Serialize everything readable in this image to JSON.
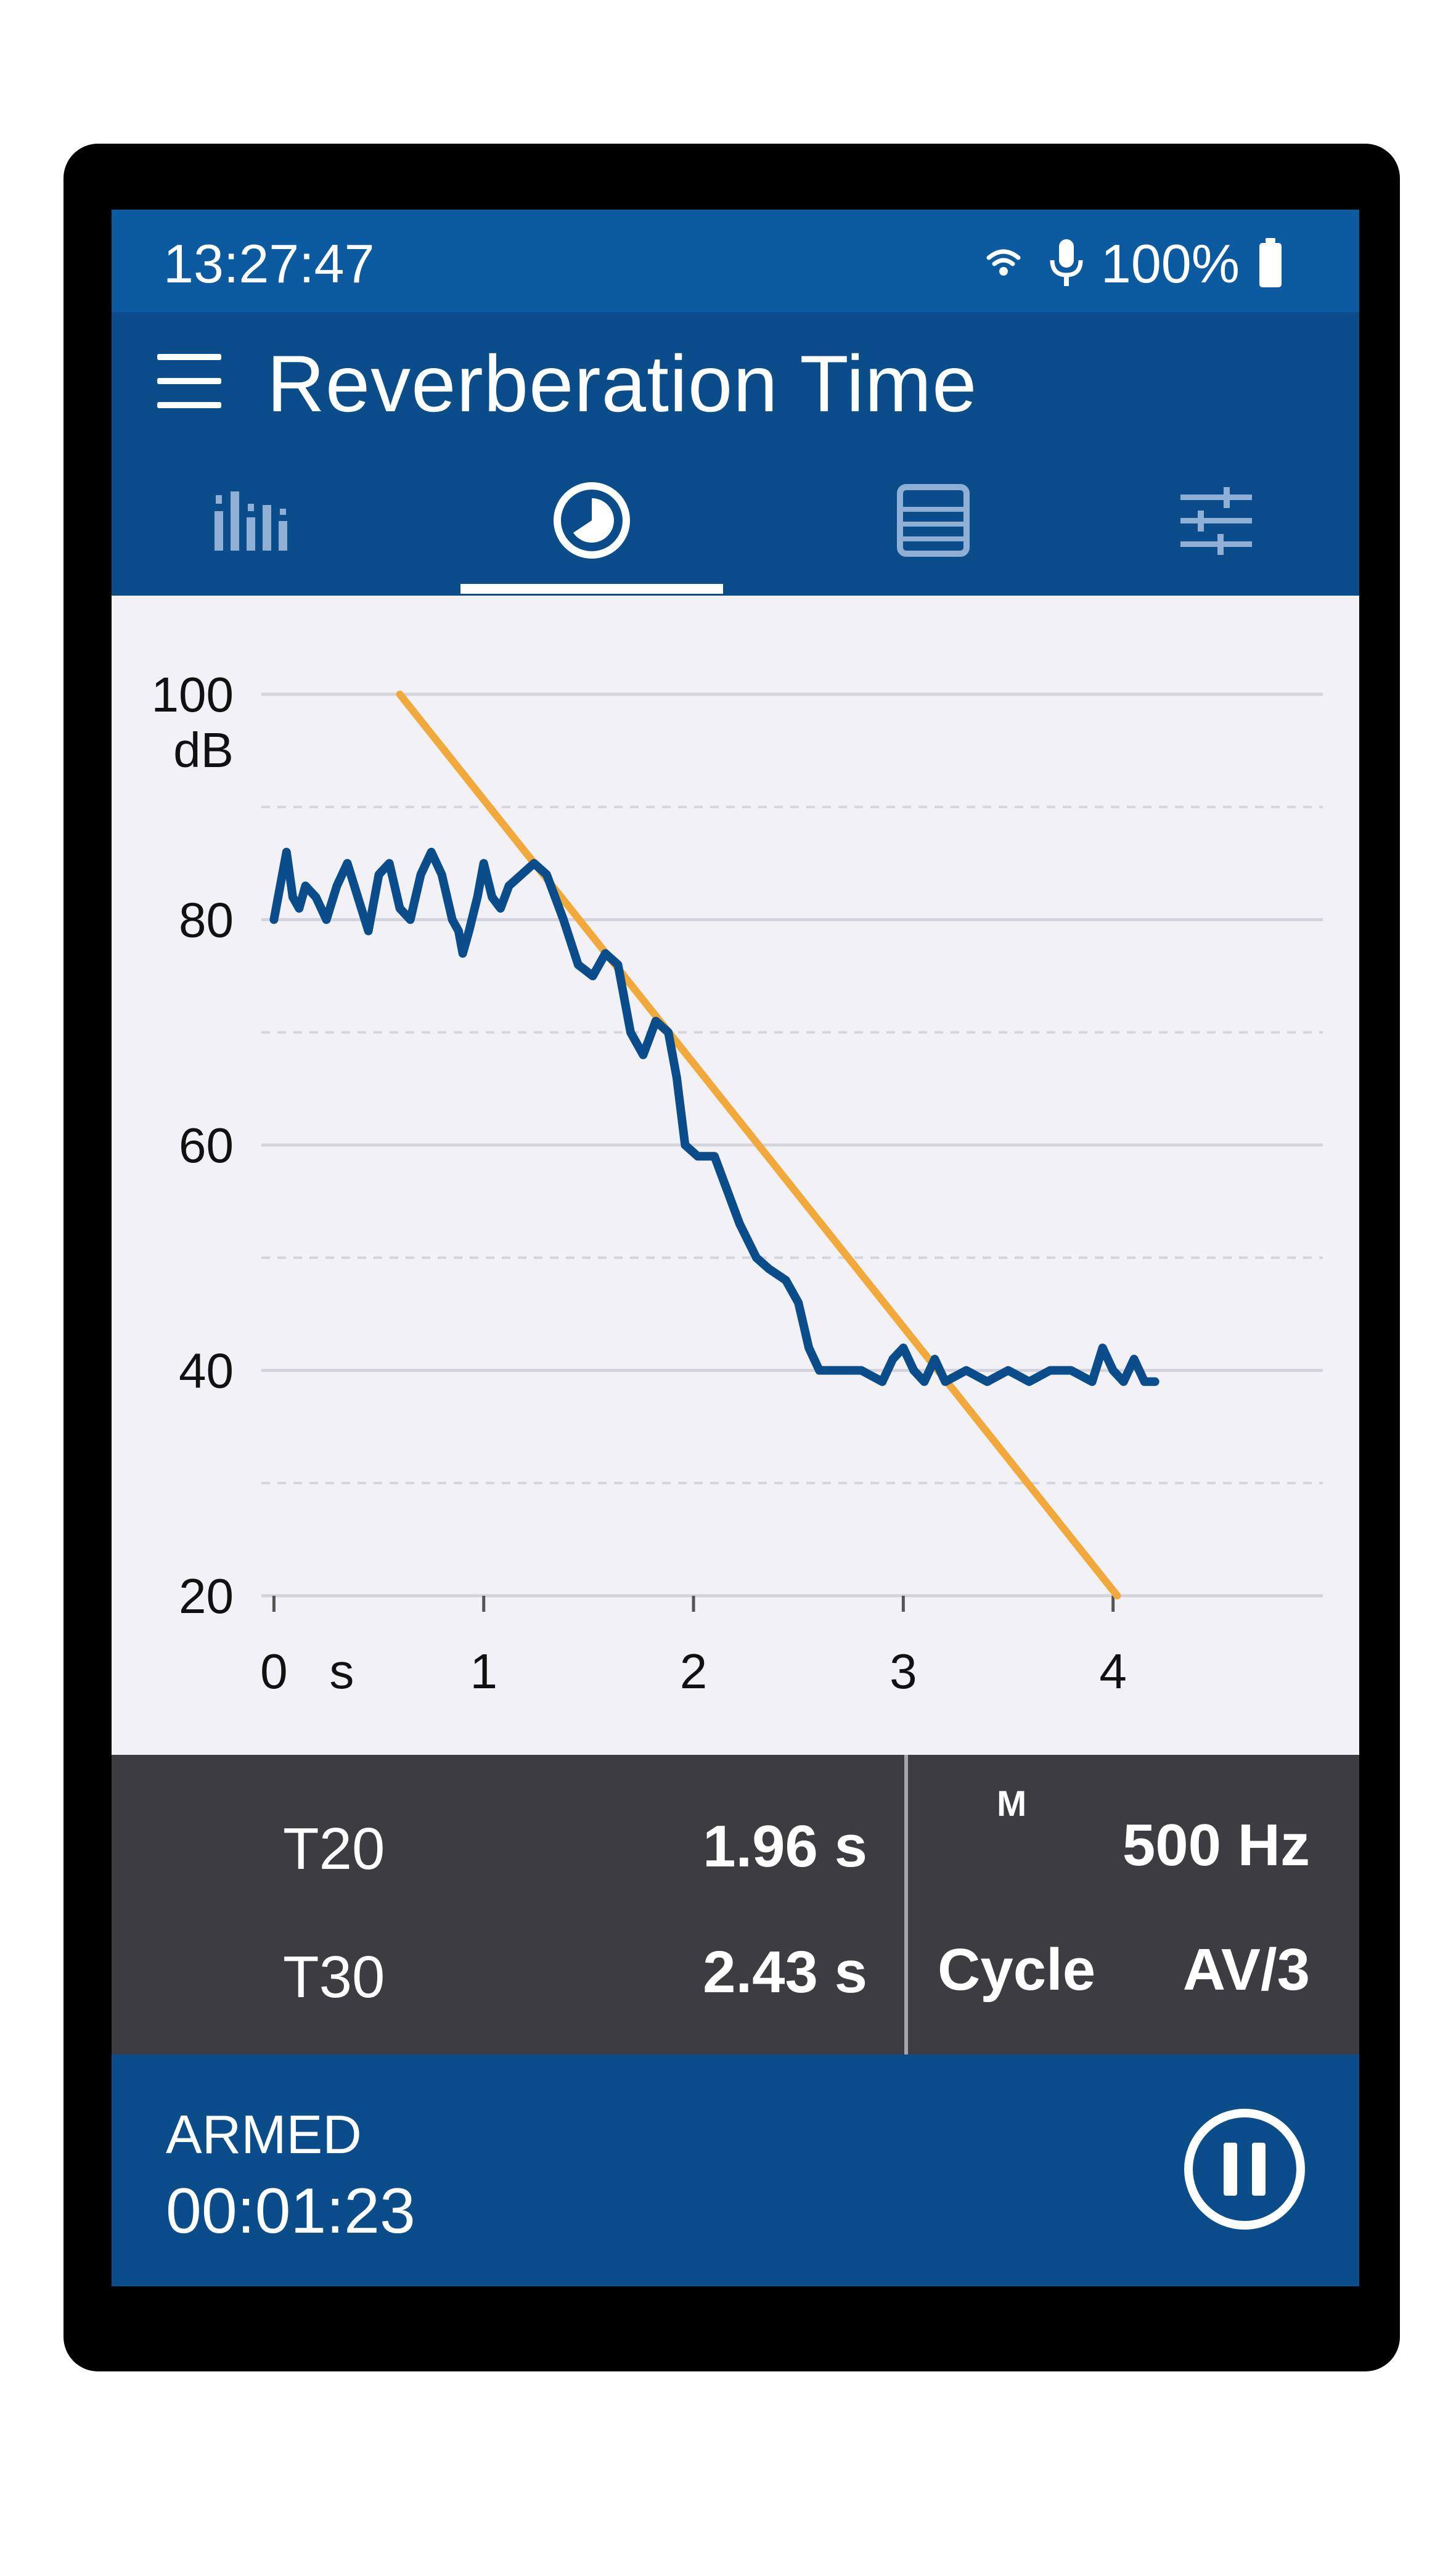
{
  "status_bar": {
    "time": "13:27:47",
    "battery_percent": "100%",
    "icons": [
      "wifi-icon",
      "microphone-icon",
      "battery-icon"
    ]
  },
  "app_bar": {
    "title": "Reverberation Time"
  },
  "tabs": [
    {
      "icon": "bar-spectrum-icon",
      "selected": false
    },
    {
      "icon": "decay-clock-icon",
      "selected": true
    },
    {
      "icon": "table-list-icon",
      "selected": false
    },
    {
      "icon": "settings-sliders-icon",
      "selected": false
    }
  ],
  "chart_data": {
    "type": "line",
    "xlabel": "s",
    "ylabel": "dB",
    "xlim": [
      -0.06,
      5.0
    ],
    "ylim": [
      20,
      100
    ],
    "x_ticks": [
      "0",
      "1",
      "2",
      "3",
      "4"
    ],
    "y_ticks": [
      "100",
      "80",
      "60",
      "40",
      "20"
    ],
    "grid": true,
    "series": [
      {
        "color": "#0b4d8b",
        "points": [
          [
            0.0,
            80
          ],
          [
            0.03,
            83
          ],
          [
            0.06,
            86
          ],
          [
            0.09,
            82
          ],
          [
            0.12,
            81
          ],
          [
            0.15,
            83
          ],
          [
            0.2,
            82
          ],
          [
            0.25,
            80
          ],
          [
            0.3,
            83
          ],
          [
            0.35,
            85
          ],
          [
            0.4,
            82
          ],
          [
            0.45,
            79
          ],
          [
            0.5,
            84
          ],
          [
            0.55,
            85
          ],
          [
            0.6,
            81
          ],
          [
            0.65,
            80
          ],
          [
            0.7,
            84
          ],
          [
            0.75,
            86
          ],
          [
            0.8,
            84
          ],
          [
            0.85,
            80
          ],
          [
            0.88,
            79
          ],
          [
            0.9,
            77
          ],
          [
            0.93,
            79
          ],
          [
            0.97,
            82
          ],
          [
            1.0,
            85
          ],
          [
            1.04,
            82
          ],
          [
            1.08,
            81
          ],
          [
            1.12,
            83
          ],
          [
            1.18,
            84
          ],
          [
            1.24,
            85
          ],
          [
            1.3,
            84
          ],
          [
            1.38,
            80
          ],
          [
            1.45,
            76
          ],
          [
            1.52,
            75
          ],
          [
            1.58,
            77
          ],
          [
            1.64,
            76
          ],
          [
            1.7,
            70
          ],
          [
            1.76,
            68
          ],
          [
            1.82,
            71
          ],
          [
            1.88,
            70
          ],
          [
            1.92,
            66
          ],
          [
            1.96,
            60
          ],
          [
            2.02,
            59
          ],
          [
            2.1,
            59
          ],
          [
            2.16,
            56
          ],
          [
            2.22,
            53
          ],
          [
            2.3,
            50
          ],
          [
            2.36,
            49
          ],
          [
            2.44,
            48
          ],
          [
            2.5,
            46
          ],
          [
            2.55,
            42
          ],
          [
            2.6,
            40
          ],
          [
            2.7,
            40
          ],
          [
            2.8,
            40
          ],
          [
            2.9,
            39
          ],
          [
            2.95,
            41
          ],
          [
            3.0,
            42
          ],
          [
            3.05,
            40
          ],
          [
            3.1,
            39
          ],
          [
            3.15,
            41
          ],
          [
            3.2,
            39
          ],
          [
            3.3,
            40
          ],
          [
            3.4,
            39
          ],
          [
            3.5,
            40
          ],
          [
            3.6,
            39
          ],
          [
            3.7,
            40
          ],
          [
            3.8,
            40
          ],
          [
            3.9,
            39
          ],
          [
            3.95,
            42
          ],
          [
            4.0,
            40
          ],
          [
            4.05,
            39
          ],
          [
            4.1,
            41
          ],
          [
            4.15,
            39
          ],
          [
            4.2,
            39
          ]
        ]
      },
      {
        "color": "#f0a93a",
        "points": [
          [
            0.6,
            100
          ],
          [
            4.02,
            20
          ]
        ]
      }
    ]
  },
  "results": {
    "t20_label": "T20",
    "t20_value": "1.96 s",
    "t30_label": "T30",
    "t30_value": "2.43 s",
    "mode_indicator": "M",
    "frequency": "500 Hz",
    "cycle_label": "Cycle",
    "cycle_value": "AV/3"
  },
  "bottom_bar": {
    "state": "ARMED",
    "elapsed": "00:01:23",
    "pause_icon": "pause-icon"
  }
}
